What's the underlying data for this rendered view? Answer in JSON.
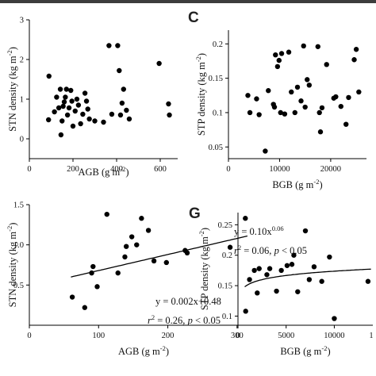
{
  "chart_data": [
    {
      "id": "top-left",
      "type": "scatter",
      "panel_label": "",
      "xlabel": "AGB (g m",
      "xlabel_sup": "-2",
      "xlabel_end": ")",
      "ylabel": "STN density (kg m",
      "ylabel_sup": "-2",
      "ylabel_end": ")",
      "xlim": [
        0,
        680
      ],
      "ylim": [
        -0.5,
        3
      ],
      "xticks": [
        0,
        200,
        400,
        600
      ],
      "yticks": [
        0,
        1,
        2,
        3
      ],
      "points": [
        [
          90,
          1.58
        ],
        [
          88,
          0.48
        ],
        [
          115,
          0.68
        ],
        [
          125,
          1.05
        ],
        [
          135,
          0.78
        ],
        [
          142,
          1.25
        ],
        [
          145,
          0.1
        ],
        [
          150,
          0.45
        ],
        [
          155,
          0.82
        ],
        [
          160,
          0.93
        ],
        [
          165,
          1.05
        ],
        [
          170,
          1.25
        ],
        [
          175,
          0.6
        ],
        [
          182,
          0.78
        ],
        [
          190,
          1.22
        ],
        [
          195,
          0.95
        ],
        [
          200,
          0.32
        ],
        [
          210,
          0.7
        ],
        [
          218,
          1.0
        ],
        [
          225,
          0.85
        ],
        [
          235,
          0.38
        ],
        [
          245,
          0.62
        ],
        [
          255,
          1.15
        ],
        [
          262,
          0.95
        ],
        [
          268,
          0.75
        ],
        [
          275,
          0.5
        ],
        [
          300,
          0.45
        ],
        [
          340,
          0.42
        ],
        [
          365,
          2.35
        ],
        [
          378,
          0.62
        ],
        [
          405,
          2.35
        ],
        [
          412,
          1.72
        ],
        [
          418,
          0.6
        ],
        [
          425,
          0.9
        ],
        [
          432,
          1.25
        ],
        [
          445,
          0.72
        ],
        [
          458,
          0.5
        ],
        [
          595,
          1.9
        ],
        [
          638,
          0.88
        ],
        [
          642,
          0.6
        ]
      ]
    },
    {
      "id": "top-right",
      "type": "scatter",
      "panel_label": "C",
      "xlabel": "BGB (g m",
      "xlabel_sup": "-2",
      "xlabel_end": ")",
      "ylabel": "STP density (kg m",
      "ylabel_sup": "-2",
      "ylabel_end": ")",
      "xlim": [
        0,
        27000
      ],
      "ylim": [
        0.033,
        0.22
      ],
      "xticks": [
        0,
        10000,
        20000
      ],
      "yticks": [
        0.05,
        0.1,
        0.15,
        0.2
      ],
      "points": [
        [
          3800,
          0.125
        ],
        [
          4200,
          0.1
        ],
        [
          5500,
          0.12
        ],
        [
          6000,
          0.097
        ],
        [
          7200,
          0.044
        ],
        [
          7800,
          0.132
        ],
        [
          8800,
          0.112
        ],
        [
          9000,
          0.108
        ],
        [
          9200,
          0.184
        ],
        [
          9600,
          0.167
        ],
        [
          9900,
          0.176
        ],
        [
          10200,
          0.1
        ],
        [
          10400,
          0.186
        ],
        [
          11000,
          0.098
        ],
        [
          11800,
          0.188
        ],
        [
          12300,
          0.13
        ],
        [
          13000,
          0.1
        ],
        [
          13500,
          0.137
        ],
        [
          14200,
          0.117
        ],
        [
          14700,
          0.197
        ],
        [
          15000,
          0.108
        ],
        [
          15400,
          0.148
        ],
        [
          15800,
          0.14
        ],
        [
          17500,
          0.196
        ],
        [
          17800,
          0.1
        ],
        [
          18000,
          0.072
        ],
        [
          18300,
          0.107
        ],
        [
          19200,
          0.17
        ],
        [
          20600,
          0.121
        ],
        [
          21000,
          0.123
        ],
        [
          22000,
          0.109
        ],
        [
          23000,
          0.083
        ],
        [
          23500,
          0.122
        ],
        [
          24600,
          0.177
        ],
        [
          25000,
          0.192
        ],
        [
          25500,
          0.13
        ]
      ]
    },
    {
      "id": "bottom-left",
      "type": "scatter",
      "panel_label": "",
      "xlabel": "AGB (g m",
      "xlabel_sup": "-2",
      "xlabel_end": ")",
      "ylabel": "STN density (kg m",
      "ylabel_sup": "-2",
      "ylabel_end": ")",
      "xlim": [
        0,
        330
      ],
      "ylim": [
        0,
        1.5
      ],
      "xticks": [
        0,
        100,
        200,
        300
      ],
      "yticks": [
        0.5,
        1.0,
        1.5
      ],
      "yticklabels": [
        "0.5",
        "1.0",
        "1.5"
      ],
      "fit": {
        "form": "linear",
        "slope": 0.002,
        "intercept": 0.48,
        "x_range": [
          60,
          315
        ]
      },
      "equation": "y = 0.002x+0.48",
      "stats": {
        "r2_prefix": "r",
        "r2_sup": "2",
        "r2_value": " = 0.26, ",
        "p_symbol": "p",
        "p_value": " < 0.05"
      },
      "points": [
        [
          62,
          0.35
        ],
        [
          80,
          0.22
        ],
        [
          90,
          0.65
        ],
        [
          92,
          0.73
        ],
        [
          98,
          0.48
        ],
        [
          112,
          1.38
        ],
        [
          128,
          0.65
        ],
        [
          138,
          0.85
        ],
        [
          140,
          0.98
        ],
        [
          148,
          1.1
        ],
        [
          155,
          1.0
        ],
        [
          162,
          1.33
        ],
        [
          172,
          1.18
        ],
        [
          180,
          0.8
        ],
        [
          198,
          0.78
        ],
        [
          225,
          0.93
        ],
        [
          228,
          0.9
        ],
        [
          290,
          0.97
        ],
        [
          312,
          1.33
        ]
      ]
    },
    {
      "id": "bottom-right",
      "type": "scatter",
      "panel_label": "G",
      "xlabel": "BGB (g m",
      "xlabel_sup": "-2",
      "xlabel_end": ")",
      "ylabel": "STP density (kg m",
      "ylabel_sup": "-2",
      "ylabel_end": ")",
      "xlim": [
        0,
        14000
      ],
      "ylim": [
        0.085,
        0.27
      ],
      "xticks": [
        0,
        5000,
        10000
      ],
      "xtick_clip_label": "1",
      "yticks": [
        0.1,
        0.15,
        0.2,
        0.25
      ],
      "fit": {
        "form": "power",
        "coef": 0.1,
        "exponent": 0.06,
        "x_range": [
          700,
          13800
        ]
      },
      "equation": "y = 0.10x",
      "equation_sup": "0.06",
      "stats": {
        "r2_prefix": "r",
        "r2_sup": "2",
        "r2_value": " = 0.06, ",
        "p_symbol": "p",
        "p_value": " < 0.05"
      },
      "points": [
        [
          800,
          0.108
        ],
        [
          1200,
          0.16
        ],
        [
          1700,
          0.175
        ],
        [
          2000,
          0.138
        ],
        [
          2200,
          0.178
        ],
        [
          3000,
          0.168
        ],
        [
          3300,
          0.178
        ],
        [
          4000,
          0.141
        ],
        [
          4500,
          0.175
        ],
        [
          5100,
          0.183
        ],
        [
          5600,
          0.185
        ],
        [
          5800,
          0.2
        ],
        [
          6200,
          0.14
        ],
        [
          7000,
          0.24
        ],
        [
          7400,
          0.16
        ],
        [
          7900,
          0.181
        ],
        [
          8700,
          0.157
        ],
        [
          9500,
          0.197
        ],
        [
          10000,
          0.096
        ],
        [
          13500,
          0.157
        ]
      ]
    }
  ]
}
